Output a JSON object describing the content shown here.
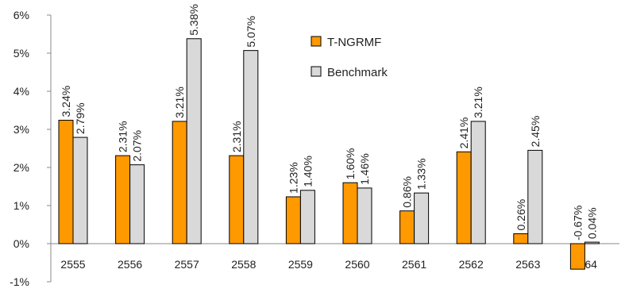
{
  "chart_data": {
    "type": "bar",
    "title": "",
    "xlabel": "",
    "ylabel": "",
    "categories": [
      "2555",
      "2556",
      "2557",
      "2558",
      "2559",
      "2560",
      "2561",
      "2562",
      "2563",
      "2564"
    ],
    "series": [
      {
        "name": "T-NGRMF",
        "color": "#FF9900",
        "values": [
          3.24,
          2.31,
          3.21,
          2.31,
          1.23,
          1.6,
          0.86,
          2.41,
          0.26,
          -0.67
        ],
        "labels": [
          "3.24%",
          "2.31%",
          "3.21%",
          "2.31%",
          "1.23%",
          "1.60%",
          "0.86%",
          "2.41%",
          "0.26%",
          "-0.67%"
        ]
      },
      {
        "name": "Benchmark",
        "color": "#D9D9D9",
        "values": [
          2.79,
          2.07,
          5.38,
          5.07,
          1.4,
          1.46,
          1.33,
          3.21,
          2.45,
          0.04
        ],
        "labels": [
          "2.79%",
          "2.07%",
          "5.38%",
          "5.07%",
          "1.40%",
          "1.46%",
          "1.33%",
          "3.21%",
          "2.45%",
          "0.04%"
        ]
      }
    ],
    "ylim": [
      -1,
      6
    ],
    "yticks": [
      -1,
      0,
      1,
      2,
      3,
      4,
      5,
      6
    ],
    "ytick_labels": [
      "-1%",
      "0%",
      "1%",
      "2%",
      "3%",
      "4%",
      "5%",
      "6%"
    ],
    "legend_position": "top-center",
    "grid": false
  }
}
